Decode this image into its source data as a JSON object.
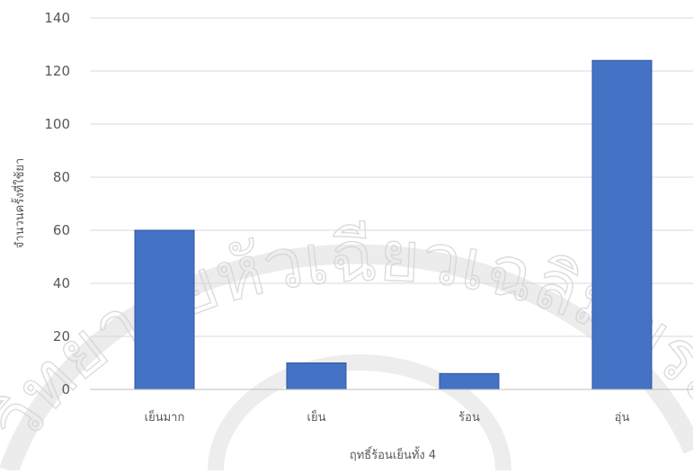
{
  "chart_data": {
    "type": "bar",
    "categories": [
      "เย็นมาก",
      "เย็น",
      "ร้อน",
      "อุ่น"
    ],
    "values": [
      60,
      10,
      6,
      124
    ],
    "xlabel": "ฤทธิ์ร้อนเย็นทั้ง 4",
    "ylabel": "จำนวนครั้งที่ใช้ยา",
    "ylim": [
      0,
      140
    ],
    "yticks": [
      0,
      20,
      40,
      60,
      80,
      100,
      120,
      140
    ],
    "grid": true,
    "bar_color": "#4472c4",
    "bar_edge_color": "#2f55a4"
  },
  "watermark": {
    "text": "วิทยาลัยหัวเฉียวเฉลิมพระเกียรติ",
    "color": "#cccccc"
  }
}
